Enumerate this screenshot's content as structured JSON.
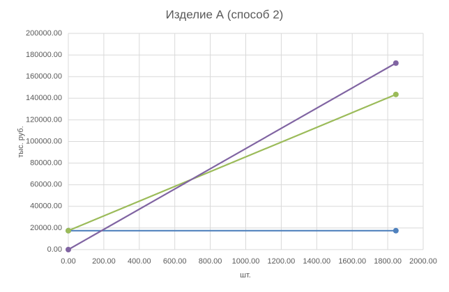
{
  "chart_data": {
    "type": "line",
    "title": "Изделие А (способ 2)",
    "x_label": "шт.",
    "y_label": "тыс. руб.",
    "series": [
      {
        "color": "#4f81bd",
        "x": [
          0,
          1846
        ],
        "values": [
          17500,
          17500
        ]
      },
      {
        "color": "#9bbb59",
        "x": [
          0,
          1846
        ],
        "values": [
          17500,
          143500
        ]
      },
      {
        "color": "#8064a2",
        "x": [
          0,
          1846
        ],
        "values": [
          0,
          172500
        ]
      }
    ],
    "xlim": [
      0,
      2000
    ],
    "xticks": [
      {
        "value": 0,
        "label": "0.00"
      },
      {
        "value": 200,
        "label": "200.00"
      },
      {
        "value": 400,
        "label": "400.00"
      },
      {
        "value": 600,
        "label": "600.00"
      },
      {
        "value": 800,
        "label": "800.00"
      },
      {
        "value": 1000,
        "label": "1000.00"
      },
      {
        "value": 1200,
        "label": "1200.00"
      },
      {
        "value": 1400,
        "label": "1400.00"
      },
      {
        "value": 1600,
        "label": "1600.00"
      },
      {
        "value": 1800,
        "label": "1800.00"
      },
      {
        "value": 2000,
        "label": "2000.00"
      }
    ],
    "ylim": [
      0,
      200000
    ],
    "yticks": [
      {
        "value": 0,
        "label": "0.00"
      },
      {
        "value": 20000,
        "label": "20000.00"
      },
      {
        "value": 40000,
        "label": "40000.00"
      },
      {
        "value": 60000,
        "label": "60000.00"
      },
      {
        "value": 80000,
        "label": "80000.00"
      },
      {
        "value": 100000,
        "label": "100000.00"
      },
      {
        "value": 120000,
        "label": "120000.00"
      },
      {
        "value": 140000,
        "label": "140000.00"
      },
      {
        "value": 160000,
        "label": "160000.00"
      },
      {
        "value": 180000,
        "label": "180000.00"
      },
      {
        "value": 200000,
        "label": "200000.00"
      }
    ],
    "grid": true
  }
}
